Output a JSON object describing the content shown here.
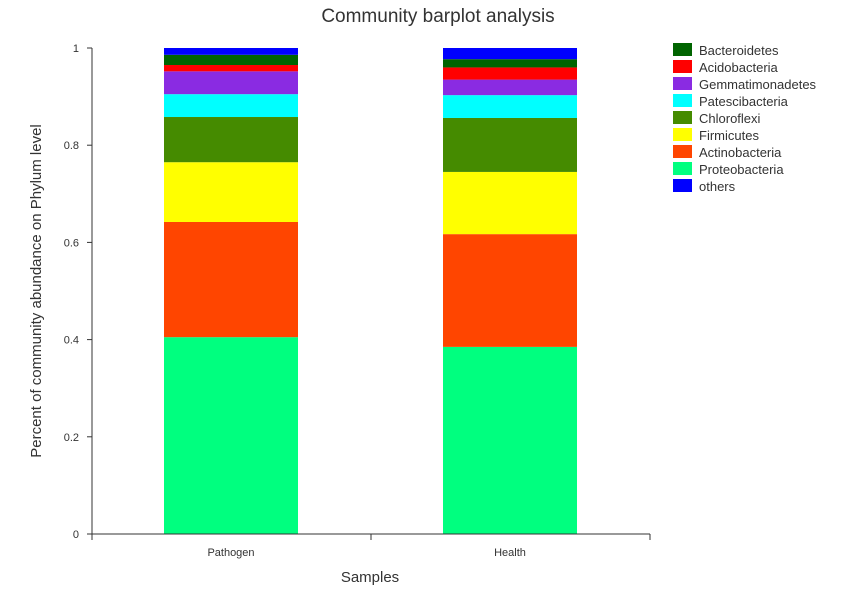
{
  "chart_data": {
    "type": "bar",
    "stacked": true,
    "title": "Community barplot analysis",
    "xlabel": "Samples",
    "ylabel": "Percent of community abundance on Phylum level",
    "categories": [
      "Pathogen",
      "Health"
    ],
    "ylim": [
      0,
      1
    ],
    "yticks": [
      "0",
      "0.2",
      "0.4",
      "0.6",
      "0.8",
      "1"
    ],
    "ytick_values": [
      0,
      0.2,
      0.4,
      0.6,
      0.8,
      1
    ],
    "grid": false,
    "legend_position": "top-right",
    "series": [
      {
        "name": "Proteobacteria",
        "color": "#00FF7F",
        "values": [
          0.405,
          0.385
        ]
      },
      {
        "name": "Actinobacteria",
        "color": "#FF4500",
        "values": [
          0.237,
          0.232
        ]
      },
      {
        "name": "Firmicutes",
        "color": "#FFFF00",
        "values": [
          0.123,
          0.128
        ]
      },
      {
        "name": "Chloroflexi",
        "color": "#458B00",
        "values": [
          0.093,
          0.111
        ]
      },
      {
        "name": "Patescibacteria",
        "color": "#00FFFF",
        "values": [
          0.047,
          0.047
        ]
      },
      {
        "name": "Gemmatimonadetes",
        "color": "#8A2BE2",
        "values": [
          0.047,
          0.032
        ]
      },
      {
        "name": "Acidobacteria",
        "color": "#FF0000",
        "values": [
          0.013,
          0.025
        ]
      },
      {
        "name": "Bacteroidetes",
        "color": "#006400",
        "values": [
          0.021,
          0.017
        ]
      },
      {
        "name": "others",
        "color": "#0000FF",
        "values": [
          0.014,
          0.023
        ]
      }
    ],
    "legend_order": [
      "Bacteroidetes",
      "Acidobacteria",
      "Gemmatimonadetes",
      "Patescibacteria",
      "Chloroflexi",
      "Firmicutes",
      "Actinobacteria",
      "Proteobacteria",
      "others"
    ]
  }
}
